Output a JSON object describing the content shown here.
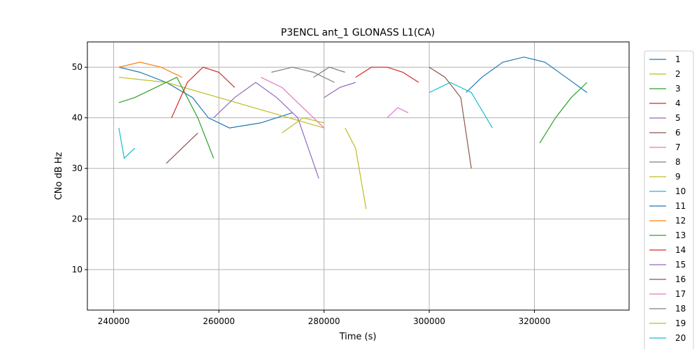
{
  "chart_data": {
    "type": "line",
    "title": "P3ENCL ant_1 GLONASS L1(CA)",
    "xlabel": "Time (s)",
    "ylabel": "CNo dB Hz",
    "xlim": [
      235000,
      338000
    ],
    "ylim": [
      2,
      55
    ],
    "xticks": [
      240000,
      260000,
      280000,
      300000,
      320000
    ],
    "yticks": [
      10,
      20,
      30,
      40,
      50
    ],
    "grid": true,
    "legend_placement": "right-outside",
    "series": [
      {
        "name": "1",
        "color": "#1f77b4",
        "x": [
          241000,
          245000,
          250000,
          255000,
          258000,
          262000,
          268000,
          274000
        ],
        "values": [
          50,
          49,
          47,
          44,
          40,
          38,
          39,
          41
        ]
      },
      {
        "name": "2",
        "color": "#bcbd22",
        "x": [
          241000,
          250000,
          260000,
          270000,
          280000
        ],
        "values": [
          48,
          47,
          44,
          41,
          38
        ]
      },
      {
        "name": "3",
        "color": "#2ca02c",
        "x": [
          241000,
          244000,
          248000,
          252000,
          256000,
          259000
        ],
        "values": [
          43,
          44,
          46,
          48,
          40,
          32
        ]
      },
      {
        "name": "4",
        "color": "#d62728",
        "x": [
          251000,
          254000,
          257000,
          260000,
          263000
        ],
        "values": [
          40,
          47,
          50,
          49,
          46
        ]
      },
      {
        "name": "5",
        "color": "#9467bd",
        "x": [
          259000,
          263000,
          267000,
          271000,
          275000,
          279000
        ],
        "values": [
          40,
          44,
          47,
          44,
          40,
          28
        ]
      },
      {
        "name": "6",
        "color": "#8c564b",
        "x": [
          250000,
          253000,
          256000
        ],
        "values": [
          31,
          34,
          37
        ]
      },
      {
        "name": "7",
        "color": "#e377c2",
        "x": [
          268000,
          272000,
          276000,
          280000
        ],
        "values": [
          48,
          46,
          42,
          38
        ]
      },
      {
        "name": "8",
        "color": "#7f7f7f",
        "x": [
          270000,
          274000,
          278000,
          282000
        ],
        "values": [
          49,
          50,
          49,
          47
        ]
      },
      {
        "name": "9",
        "color": "#bcbd22",
        "x": [
          284000,
          286000,
          288000
        ],
        "values": [
          38,
          34,
          22
        ]
      },
      {
        "name": "10",
        "color": "#17becf",
        "x": [
          241000,
          242000,
          244000
        ],
        "values": [
          38,
          32,
          34
        ]
      },
      {
        "name": "11",
        "color": "#1f77b4",
        "x": [
          307000,
          310000,
          314000,
          318000,
          322000,
          326000,
          330000
        ],
        "values": [
          45,
          48,
          51,
          52,
          51,
          48,
          45
        ]
      },
      {
        "name": "12",
        "color": "#ff7f0e",
        "x": [
          241000,
          245000,
          249000,
          253000
        ],
        "values": [
          50,
          51,
          50,
          48
        ]
      },
      {
        "name": "13",
        "color": "#2ca02c",
        "x": [
          321000,
          324000,
          327000,
          330000
        ],
        "values": [
          35,
          40,
          44,
          47
        ]
      },
      {
        "name": "14",
        "color": "#d62728",
        "x": [
          286000,
          289000,
          292000,
          295000,
          298000
        ],
        "values": [
          48,
          50,
          50,
          49,
          47
        ]
      },
      {
        "name": "15",
        "color": "#9467bd",
        "x": [
          280000,
          283000,
          286000
        ],
        "values": [
          44,
          46,
          47
        ]
      },
      {
        "name": "16",
        "color": "#8c564b",
        "x": [
          300000,
          303000,
          306000,
          308000
        ],
        "values": [
          50,
          48,
          44,
          30
        ]
      },
      {
        "name": "17",
        "color": "#e377c2",
        "x": [
          292000,
          294000,
          296000
        ],
        "values": [
          40,
          42,
          41
        ]
      },
      {
        "name": "18",
        "color": "#7f7f7f",
        "x": [
          278000,
          281000,
          284000
        ],
        "values": [
          48,
          50,
          49
        ]
      },
      {
        "name": "19",
        "color": "#bcbd22",
        "x": [
          272000,
          276000,
          280000
        ],
        "values": [
          37,
          40,
          39
        ]
      },
      {
        "name": "20",
        "color": "#17becf",
        "x": [
          300000,
          304000,
          308000,
          312000
        ],
        "values": [
          45,
          47,
          45,
          38
        ]
      }
    ]
  }
}
